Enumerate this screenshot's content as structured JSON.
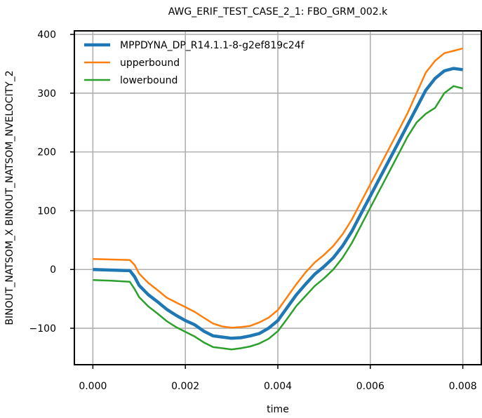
{
  "chart_data": {
    "type": "line",
    "title": "AWG_ERIF_TEST_CASE_2_1: FBO_GRM_002.k",
    "xlabel": "time",
    "ylabel": "BINOUT_NATSOM_X BINOUT_NATSOM_NVELOCITY_2",
    "xlim": [
      -0.0004,
      0.0084
    ],
    "ylim": [
      -162,
      406
    ],
    "xticks": [
      "0.000",
      "0.002",
      "0.004",
      "0.006",
      "0.008"
    ],
    "xtick_values": [
      0.0,
      0.002,
      0.004,
      0.006,
      0.008
    ],
    "yticks": [
      "−100",
      "0",
      "100",
      "200",
      "300",
      "400"
    ],
    "ytick_values": [
      -100,
      0,
      100,
      200,
      300,
      400
    ],
    "grid": true,
    "legend_position": "top-left",
    "series": [
      {
        "name": "MPPDYNA_DP_R14.1.1-8-g2ef819c24f",
        "color": "#1f77b4",
        "x": [
          0.0,
          0.0004,
          0.0008,
          0.0009,
          0.001,
          0.0012,
          0.0014,
          0.0016,
          0.0018,
          0.002,
          0.0022,
          0.0024,
          0.0026,
          0.0028,
          0.003,
          0.0032,
          0.0034,
          0.0036,
          0.0038,
          0.004,
          0.0042,
          0.0044,
          0.0046,
          0.0048,
          0.005,
          0.0052,
          0.0054,
          0.0056,
          0.0058,
          0.006,
          0.0062,
          0.0064,
          0.0066,
          0.0068,
          0.007,
          0.0072,
          0.0074,
          0.0076,
          0.0078,
          0.008
        ],
        "y": [
          0,
          -1,
          -2,
          -12,
          -27,
          -43,
          -55,
          -68,
          -78,
          -87,
          -94,
          -105,
          -113,
          -115,
          -117,
          -116,
          -113,
          -109,
          -100,
          -87,
          -65,
          -43,
          -25,
          -8,
          5,
          20,
          40,
          65,
          95,
          125,
          155,
          185,
          215,
          245,
          275,
          305,
          325,
          338,
          342,
          340
        ]
      },
      {
        "name": "upperbound",
        "color": "#ff7f0e",
        "x": [
          0.0,
          0.0004,
          0.0008,
          0.0009,
          0.001,
          0.0012,
          0.0014,
          0.0016,
          0.0018,
          0.002,
          0.0022,
          0.0024,
          0.0026,
          0.0028,
          0.003,
          0.0032,
          0.0034,
          0.0036,
          0.0038,
          0.004,
          0.0042,
          0.0044,
          0.0046,
          0.0048,
          0.005,
          0.0052,
          0.0054,
          0.0056,
          0.0058,
          0.006,
          0.0062,
          0.0064,
          0.0066,
          0.0068,
          0.007,
          0.0072,
          0.0074,
          0.0076,
          0.0078,
          0.008
        ],
        "y": [
          18,
          17,
          16,
          8,
          -7,
          -23,
          -35,
          -48,
          -56,
          -64,
          -72,
          -82,
          -92,
          -97,
          -99,
          -98,
          -96,
          -90,
          -82,
          -69,
          -47,
          -25,
          -5,
          12,
          25,
          40,
          60,
          85,
          115,
          145,
          175,
          205,
          235,
          265,
          300,
          335,
          355,
          368,
          372,
          376
        ]
      },
      {
        "name": "lowerbound",
        "color": "#2ca02c",
        "x": [
          0.0,
          0.0004,
          0.0008,
          0.0009,
          0.001,
          0.0012,
          0.0014,
          0.0016,
          0.0018,
          0.002,
          0.0022,
          0.0024,
          0.0026,
          0.0028,
          0.003,
          0.0032,
          0.0034,
          0.0036,
          0.0038,
          0.004,
          0.0042,
          0.0044,
          0.0046,
          0.0048,
          0.005,
          0.0052,
          0.0054,
          0.0056,
          0.0058,
          0.006,
          0.0062,
          0.0064,
          0.0066,
          0.0068,
          0.007,
          0.0072,
          0.0074,
          0.0076,
          0.0078,
          0.008
        ],
        "y": [
          -18,
          -19,
          -21,
          -33,
          -47,
          -63,
          -75,
          -88,
          -98,
          -106,
          -114,
          -124,
          -132,
          -134,
          -136,
          -134,
          -131,
          -126,
          -118,
          -105,
          -84,
          -62,
          -45,
          -28,
          -15,
          0,
          20,
          45,
          75,
          105,
          135,
          165,
          195,
          225,
          250,
          265,
          275,
          300,
          312,
          308
        ]
      }
    ]
  }
}
